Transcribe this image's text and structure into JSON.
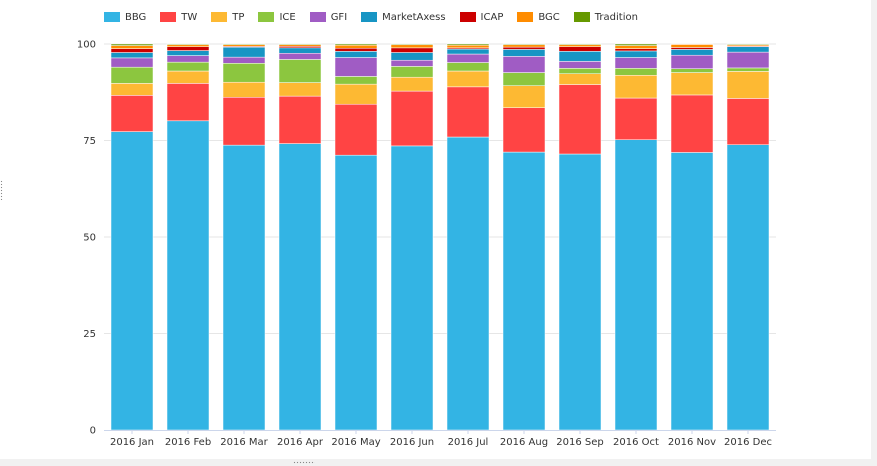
{
  "chart_data": {
    "type": "bar",
    "stacked": true,
    "categories": [
      "2016 Jan",
      "2016 Feb",
      "2016 Mar",
      "2016 Apr",
      "2016 May",
      "2016 Jun",
      "2016 Jul",
      "2016 Aug",
      "2016 Sep",
      "2016 Oct",
      "2016 Nov",
      "2016 Dec"
    ],
    "ylim": [
      0,
      100
    ],
    "yticks": [
      0,
      25,
      50,
      75,
      100
    ],
    "grid": true,
    "legend_position": "top-left",
    "series": [
      {
        "name": "BBG",
        "color": "#33b4e4",
        "values": [
          77.3,
          80.1,
          73.8,
          74.2,
          71.2,
          73.6,
          75.9,
          72.0,
          71.5,
          75.2,
          71.9,
          73.9
        ]
      },
      {
        "name": "TW",
        "color": "#ff4444",
        "values": [
          9.4,
          9.7,
          12.4,
          12.3,
          13.2,
          14.2,
          13.0,
          11.5,
          18.0,
          10.8,
          14.9,
          12.0
        ]
      },
      {
        "name": "TP",
        "color": "#fdb933",
        "values": [
          3.1,
          3.2,
          3.9,
          3.5,
          5.2,
          3.6,
          4.1,
          5.7,
          2.8,
          5.9,
          5.8,
          7.0
        ]
      },
      {
        "name": "ICE",
        "color": "#8cc63f",
        "values": [
          4.2,
          2.3,
          4.9,
          6.0,
          2.0,
          2.8,
          2.2,
          3.4,
          1.4,
          1.8,
          1.0,
          0.9
        ]
      },
      {
        "name": "GFI",
        "color": "#a05cc4",
        "values": [
          2.4,
          1.7,
          1.6,
          1.6,
          4.9,
          1.6,
          2.2,
          4.2,
          1.8,
          2.8,
          3.5,
          4.1
        ]
      },
      {
        "name": "MarketAxess",
        "color": "#1795c4",
        "values": [
          1.4,
          1.3,
          2.6,
          1.4,
          1.6,
          2.0,
          1.3,
          1.8,
          2.6,
          1.7,
          1.5,
          1.4
        ]
      },
      {
        "name": "ICAP",
        "color": "#cc0000",
        "values": [
          1.0,
          1.0,
          0.2,
          0.4,
          0.8,
          1.2,
          0.3,
          0.6,
          1.2,
          0.6,
          0.5,
          0.2
        ]
      },
      {
        "name": "BGC",
        "color": "#ff8c00",
        "values": [
          0.8,
          0.5,
          0.4,
          0.4,
          0.8,
          0.8,
          0.7,
          0.6,
          0.5,
          0.8,
          0.8,
          0.3
        ]
      },
      {
        "name": "Tradition",
        "color": "#669900",
        "values": [
          0.4,
          0.2,
          0.2,
          0.2,
          0.3,
          0.2,
          0.3,
          0.2,
          0.2,
          0.4,
          0.1,
          0.2
        ]
      }
    ]
  }
}
